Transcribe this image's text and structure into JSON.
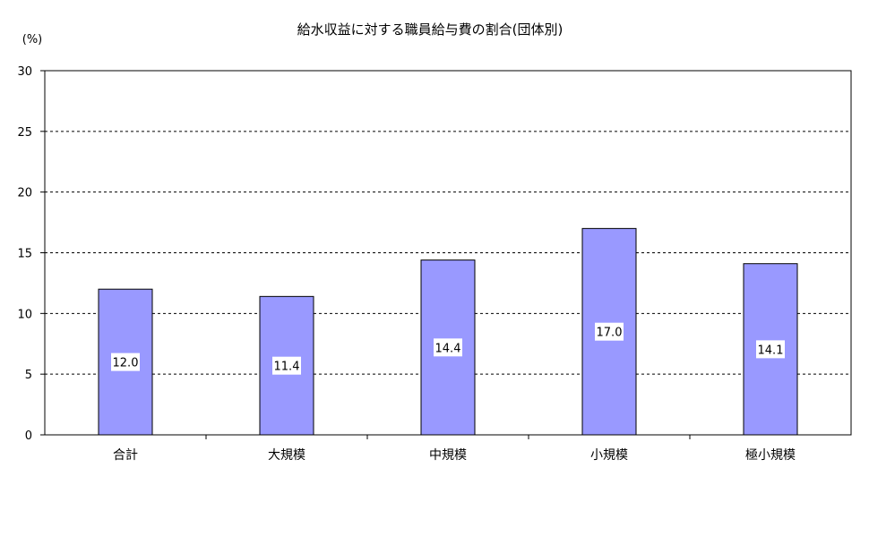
{
  "chart_data": {
    "type": "bar",
    "title": "給水収益に対する職員給与費の割合(団体別)",
    "unit_label": "(%)",
    "categories": [
      "合計",
      "大規模",
      "中規模",
      "小規模",
      "極小規模"
    ],
    "values": [
      12.0,
      11.4,
      14.4,
      17.0,
      14.1
    ],
    "data_labels": [
      "12.0",
      "11.4",
      "14.4",
      "17.0",
      "14.1"
    ],
    "ylim": [
      0,
      30
    ],
    "yticks": [
      0,
      5,
      10,
      15,
      20,
      25,
      30
    ],
    "grid": true,
    "legend": "none",
    "colors": {
      "bar_fill": "#9999ff",
      "bar_stroke": "#000000",
      "grid": "#000000",
      "label_box": "#ffffff"
    }
  }
}
